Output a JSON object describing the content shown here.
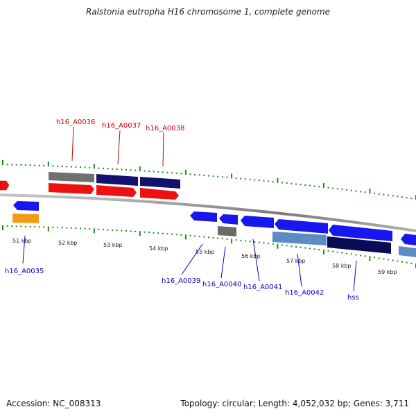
{
  "title": "Ralstonia eutropha H16 chromosome 1, complete genome",
  "footer": {
    "accession": "Accession: NC_008313",
    "topology": "Topology: circular; Length: 4,052,032 bp; Genes: 3,711"
  },
  "colors": {
    "backbone": "#8a8a8a",
    "tick": "#1a8a1a",
    "label_upper": "#cc0000",
    "label_lower": "#0000cc",
    "gene_red": "#ee1111",
    "gene_navy": "#12126e",
    "gene_gray": "#707070",
    "gene_blue": "#1818ee",
    "gene_orange": "#f39a12",
    "gene_lightblue": "#5b8cc4",
    "gene_darknavy": "#0a0a55"
  },
  "kbp_labels": [
    "51 kbp",
    "52 kbp",
    "53 kbp",
    "54 kbp",
    "55 kbp",
    "56 kbp",
    "57 kbp",
    "58 kbp",
    "59 kbp"
  ],
  "upper_gene_labels": [
    "h16_A0036",
    "h16_A0037",
    "h16_A0038"
  ],
  "lower_gene_labels": [
    "h16_A0035",
    "h16_A0039",
    "h16_A0040",
    "h16_A0041",
    "h16_A0042",
    "hss"
  ]
}
